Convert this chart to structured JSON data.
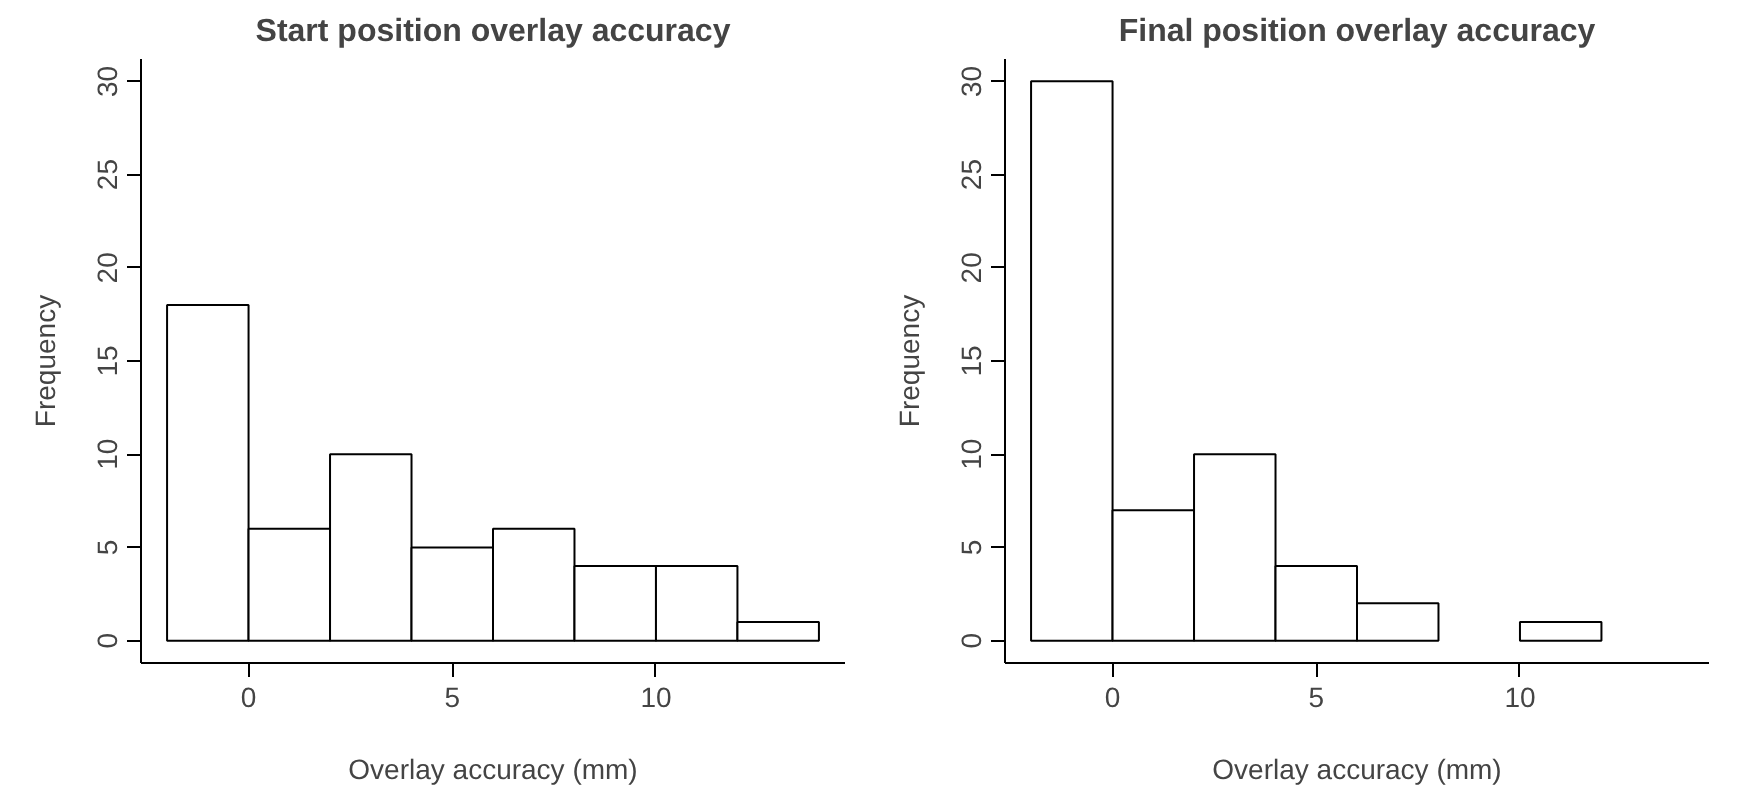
{
  "chart_data": [
    {
      "type": "histogram",
      "title": "Start position overlay accuracy",
      "xlabel": "Overlay accuracy (mm)",
      "ylabel": "Frequency",
      "bins": [
        -2,
        0,
        2,
        4,
        6,
        8,
        10,
        12,
        14
      ],
      "values": [
        18,
        6,
        10,
        5,
        6,
        4,
        4,
        1
      ],
      "color": "#ffffff",
      "xlim": [
        -2.64,
        14.64
      ],
      "ylim": [
        -1.2,
        31.2
      ],
      "xticks": [
        0,
        5,
        10
      ],
      "yticks": [
        0,
        5,
        10,
        15,
        20,
        25,
        30
      ],
      "grid": false
    },
    {
      "type": "histogram",
      "title": "Final position overlay accuracy",
      "xlabel": "Overlay accuracy (mm)",
      "ylabel": "Frequency",
      "bins": [
        -2,
        0,
        2,
        4,
        6,
        8,
        10,
        12
      ],
      "values": [
        30,
        7,
        10,
        4,
        2,
        0,
        1
      ],
      "color": "#ffffff",
      "xlim": [
        -2.64,
        14.64
      ],
      "ylim": [
        -1.2,
        31.2
      ],
      "xticks": [
        0,
        5,
        10
      ],
      "yticks": [
        0,
        5,
        10,
        15,
        20,
        25,
        30
      ],
      "grid": false
    }
  ]
}
